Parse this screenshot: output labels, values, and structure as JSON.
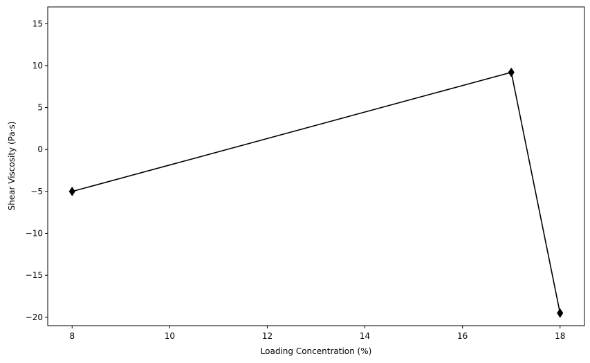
{
  "chart_data": {
    "type": "line",
    "title": "",
    "xlabel": "Loading Concentration (%)",
    "ylabel": "Shear Viscosity (Pa·s)",
    "xlim": [
      7.5,
      18.5
    ],
    "ylim": [
      -21,
      17
    ],
    "xticks": [
      8,
      10,
      12,
      14,
      16,
      18
    ],
    "yticks": [
      -20,
      -15,
      -10,
      -5,
      0,
      5,
      10,
      15
    ],
    "grid": false,
    "series": [
      {
        "x": [
          8,
          17,
          18
        ],
        "y": [
          -5.0,
          9.2,
          -19.5
        ],
        "color": "#000000",
        "marker": "diamond"
      }
    ]
  }
}
